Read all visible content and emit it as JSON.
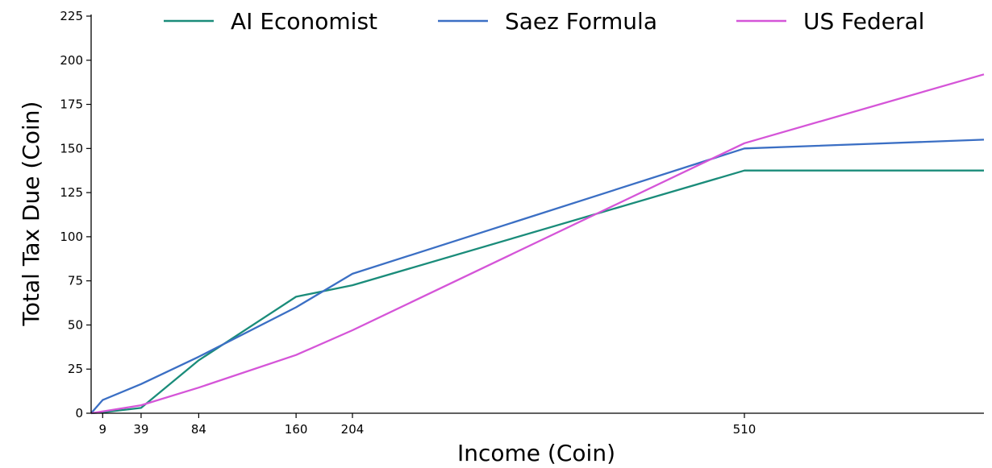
{
  "chart_data": {
    "type": "line",
    "xlabel": "Income (Coin)",
    "ylabel": "Total Tax Due (Coin)",
    "xlim": [
      0,
      697
    ],
    "ylim": [
      0,
      225
    ],
    "xticks": [
      9,
      39,
      84,
      160,
      204,
      510
    ],
    "yticks": [
      0,
      25,
      50,
      75,
      100,
      125,
      150,
      175,
      200,
      225
    ],
    "grid": false,
    "legend_position": "top",
    "series": [
      {
        "name": "AI Economist",
        "color": "#1a8c7a",
        "x": [
          0,
          9,
          39,
          84,
          160,
          204,
          510,
          697
        ],
        "y": [
          0,
          0.5,
          3,
          30,
          66,
          72.5,
          137.5,
          137.5
        ]
      },
      {
        "name": "Saez Formula",
        "color": "#3b6fc4",
        "x": [
          0,
          9,
          39,
          84,
          160,
          204,
          510,
          697
        ],
        "y": [
          0,
          7.5,
          16.5,
          32,
          60,
          79,
          150,
          155
        ]
      },
      {
        "name": "US Federal",
        "color": "#d555d8",
        "x": [
          0,
          9,
          39,
          84,
          160,
          204,
          510,
          697
        ],
        "y": [
          0,
          1,
          4.5,
          14.5,
          33,
          47,
          153,
          192
        ]
      }
    ]
  }
}
